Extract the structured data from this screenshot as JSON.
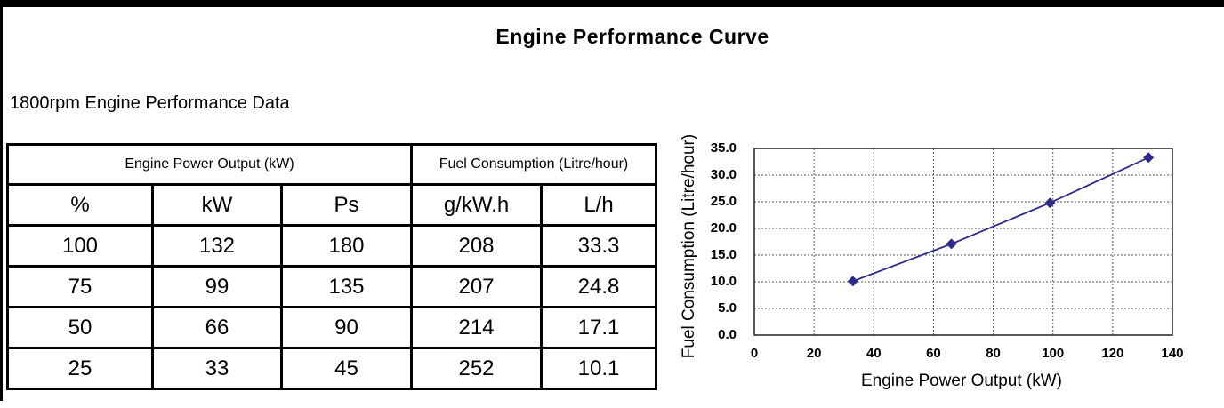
{
  "title": "Engine Performance Curve",
  "subtitle": "1800rpm Engine Performance Data",
  "table": {
    "group_headers": [
      "Engine Power Output (kW)",
      "Fuel Consumption (Litre/hour)"
    ],
    "columns": [
      "%",
      "kW",
      "Ps",
      "g/kW.h",
      "L/h"
    ],
    "rows": [
      [
        "100",
        "132",
        "180",
        "208",
        "33.3"
      ],
      [
        "75",
        "99",
        "135",
        "207",
        "24.8"
      ],
      [
        "50",
        "66",
        "90",
        "214",
        "17.1"
      ],
      [
        "25",
        "33",
        "45",
        "252",
        "10.1"
      ]
    ]
  },
  "chart_data": {
    "type": "line",
    "x_label": "Engine Power Output (kW)",
    "y_label": "Fuel Consumption (Litre/hour)",
    "x": [
      33,
      66,
      99,
      132
    ],
    "series": [
      {
        "color": "#2b2b8c",
        "values": [
          10.1,
          17.1,
          24.8,
          33.3
        ]
      }
    ],
    "xlim": [
      0,
      140
    ],
    "xticks": [
      0,
      20,
      40,
      60,
      80,
      100,
      120,
      140
    ],
    "ylim": [
      0,
      35
    ],
    "yticks": [
      {
        "value": 0,
        "label": "0.0"
      },
      {
        "value": 5,
        "label": "5.0"
      },
      {
        "value": 10,
        "label": "10.0"
      },
      {
        "value": 15,
        "label": "15.0"
      },
      {
        "value": 20,
        "label": "20.0"
      },
      {
        "value": 25,
        "label": "25.0"
      },
      {
        "value": 30,
        "label": "30.0"
      },
      {
        "value": 35,
        "label": "35.0"
      }
    ],
    "grid": true
  }
}
